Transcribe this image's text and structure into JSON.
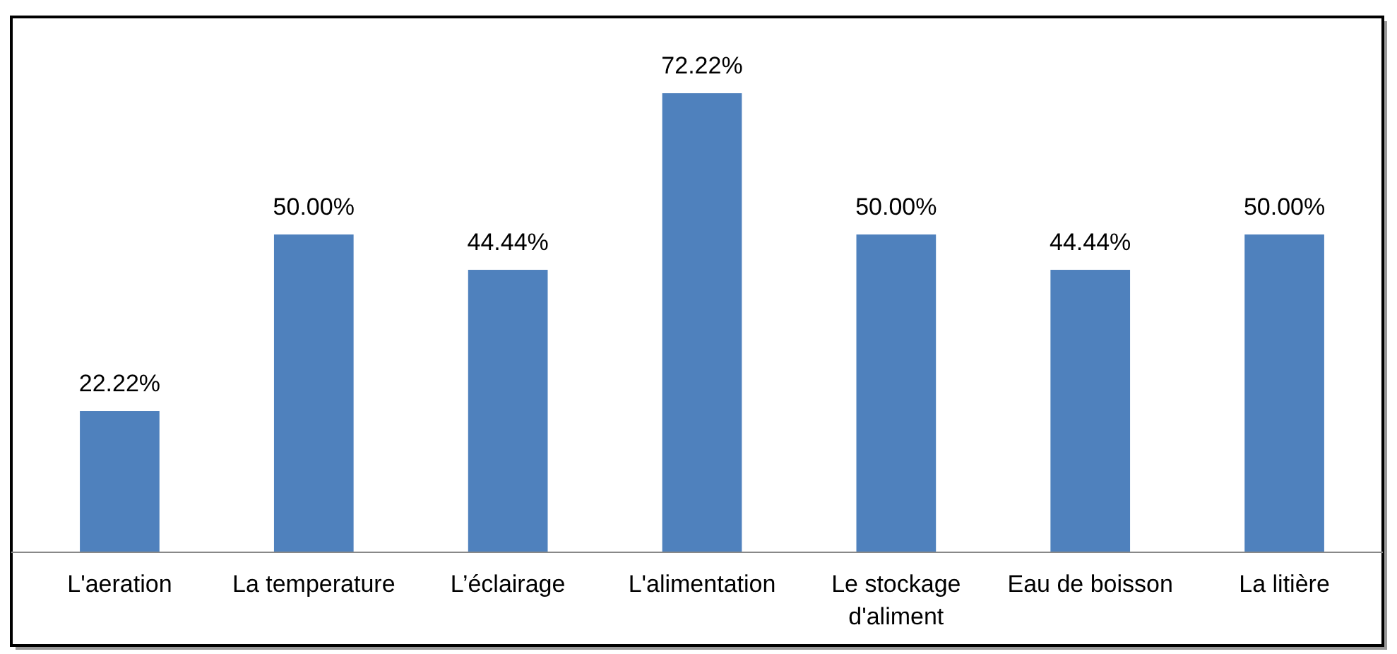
{
  "chart_data": {
    "type": "bar",
    "categories": [
      "L'aeration",
      "La temperature",
      "L’éclairage",
      "L'alimentation",
      "Le stockage d'aliment",
      "Eau de boisson",
      "La litière"
    ],
    "values": [
      22.22,
      50.0,
      44.44,
      72.22,
      50.0,
      44.44,
      50.0
    ],
    "value_labels": [
      "22.22%",
      "50.00%",
      "44.44%",
      "72.22%",
      "50.00%",
      "44.44%",
      "50.00%"
    ],
    "color": "#4f81bd"
  }
}
